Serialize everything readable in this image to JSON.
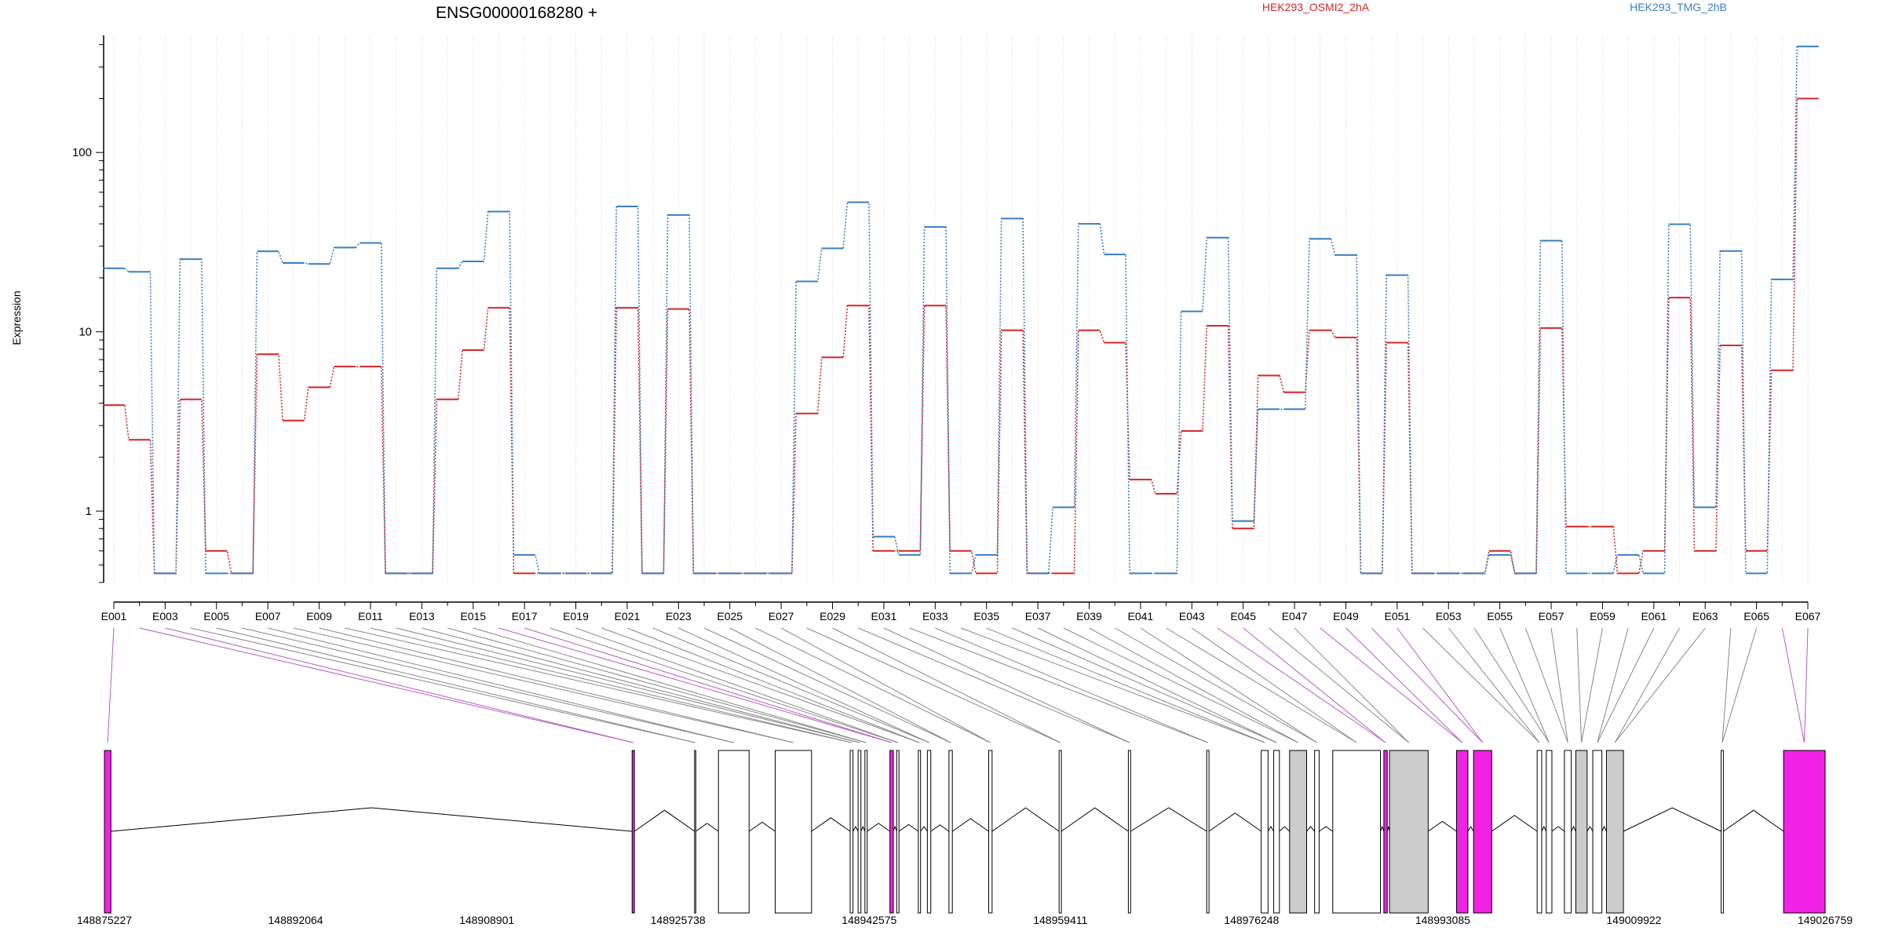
{
  "gene_title": "ENSG00000168280 +",
  "colors": {
    "series_a": "#d62728",
    "series_b": "#3a7fc4",
    "highlight": "#f022e6",
    "shaded": "#cccccc",
    "connector": "#888888"
  },
  "chart_data": {
    "type": "line",
    "title": "ENSG00000168280 +",
    "ylabel": "Expression",
    "xlabel": "",
    "yscale": "log",
    "ylim": [
      0.4,
      450
    ],
    "grid": "vertical",
    "legend": "top",
    "y_ticks": [
      "1",
      "10",
      "100"
    ],
    "y_tick_values": [
      1,
      10,
      100
    ],
    "categories": [
      "E001",
      "E002",
      "E003",
      "E004",
      "E005",
      "E006",
      "E007",
      "E008",
      "E009",
      "E010",
      "E011",
      "E012",
      "E013",
      "E014",
      "E015",
      "E016",
      "E017",
      "E018",
      "E019",
      "E020",
      "E021",
      "E022",
      "E023",
      "E024",
      "E025",
      "E026",
      "E027",
      "E028",
      "E029",
      "E030",
      "E031",
      "E032",
      "E033",
      "E034",
      "E035",
      "E036",
      "E037",
      "E038",
      "E039",
      "E040",
      "E041",
      "E042",
      "E043",
      "E044",
      "E045",
      "E046",
      "E047",
      "E048",
      "E049",
      "E050",
      "E051",
      "E052",
      "E053",
      "E054",
      "E055",
      "E056",
      "E057",
      "E058",
      "E059",
      "E060",
      "E061",
      "E062",
      "E063",
      "E064",
      "E065",
      "E066",
      "E067"
    ],
    "x_tick_labels": [
      "E001",
      "E003",
      "E005",
      "E007",
      "E009",
      "E011",
      "E013",
      "E015",
      "E017",
      "E019",
      "E021",
      "E023",
      "E025",
      "E027",
      "E029",
      "E031",
      "E033",
      "E035",
      "E037",
      "E039",
      "E041",
      "E043",
      "E045",
      "E047",
      "E049",
      "E051",
      "E053",
      "E055",
      "E057",
      "E059",
      "E061",
      "E063",
      "E065",
      "E067"
    ],
    "series": [
      {
        "name": "HEK293_OSMI2_2hA",
        "color": "#d62728",
        "values": [
          3.9,
          2.5,
          0.45,
          4.2,
          0.6,
          0.45,
          7.5,
          3.2,
          4.9,
          6.4,
          6.4,
          0.45,
          0.45,
          4.2,
          7.9,
          13.6,
          0.45,
          0.45,
          0.45,
          0.45,
          13.6,
          0.45,
          13.4,
          0.45,
          0.45,
          0.45,
          0.45,
          3.5,
          7.2,
          14,
          0.6,
          0.6,
          14,
          0.6,
          0.45,
          10.2,
          0.45,
          0.45,
          10.2,
          8.7,
          1.5,
          1.25,
          2.8,
          10.8,
          0.8,
          5.7,
          4.6,
          10.2,
          9.3,
          0.45,
          8.7,
          0.45,
          0.45,
          0.45,
          0.6,
          0.45,
          10.5,
          0.82,
          0.82,
          0.45,
          0.6,
          15.5,
          0.6,
          8.4,
          0.6,
          6.1,
          200
        ]
      },
      {
        "name": "HEK293_TMG_2hB",
        "color": "#3a7fc4",
        "values": [
          22.6,
          21.6,
          0.45,
          25.4,
          0.45,
          0.45,
          28.1,
          24.2,
          23.9,
          29.5,
          31.3,
          0.45,
          0.45,
          22.6,
          24.7,
          46.8,
          0.57,
          0.45,
          0.45,
          0.45,
          50,
          0.45,
          44.8,
          0.45,
          0.45,
          0.45,
          0.45,
          19.1,
          29.2,
          52.8,
          0.72,
          0.57,
          38.4,
          0.45,
          0.57,
          42.8,
          0.45,
          1.05,
          40,
          27,
          0.45,
          0.45,
          13,
          33.5,
          0.88,
          3.7,
          3.7,
          33,
          26.8,
          0.45,
          20.7,
          0.45,
          0.45,
          0.45,
          0.57,
          0.45,
          32.2,
          0.45,
          0.45,
          0.57,
          0.45,
          39.8,
          1.05,
          28.2,
          0.45,
          19.6,
          390
        ]
      }
    ],
    "gene_model": {
      "coordinate_labels": [
        "148875227",
        "148892064",
        "148908901",
        "148925738",
        "148942575",
        "148959411",
        "148976248",
        "148993085",
        "149009922",
        "149026759"
      ],
      "coordinate_values": [
        148875227,
        148892064,
        148908901,
        148925738,
        148942575,
        148959411,
        148976248,
        148993085,
        149009922,
        149026759
      ],
      "exons": [
        {
          "start": 148875227,
          "end": 148875800,
          "fill": "highlight"
        },
        {
          "start": 148921700,
          "end": 148921900,
          "fill": "highlight"
        },
        {
          "start": 148927200,
          "end": 148927300,
          "fill": "none"
        },
        {
          "start": 148929300,
          "end": 148932000,
          "fill": "none"
        },
        {
          "start": 148934300,
          "end": 148937500,
          "fill": "none"
        },
        {
          "start": 148940900,
          "end": 148941150,
          "fill": "none"
        },
        {
          "start": 148941600,
          "end": 148941850,
          "fill": "none"
        },
        {
          "start": 148942200,
          "end": 148942400,
          "fill": "none"
        },
        {
          "start": 148944400,
          "end": 148944700,
          "fill": "highlight"
        },
        {
          "start": 148945000,
          "end": 148945200,
          "fill": "none"
        },
        {
          "start": 148946900,
          "end": 148947100,
          "fill": "none"
        },
        {
          "start": 148947700,
          "end": 148948000,
          "fill": "none"
        },
        {
          "start": 148949600,
          "end": 148949900,
          "fill": "none"
        },
        {
          "start": 148953100,
          "end": 148953400,
          "fill": "none"
        },
        {
          "start": 148959300,
          "end": 148959500,
          "fill": "none"
        },
        {
          "start": 148965400,
          "end": 148965600,
          "fill": "none"
        },
        {
          "start": 148972300,
          "end": 148972500,
          "fill": "none"
        },
        {
          "start": 148977100,
          "end": 148977700,
          "fill": "none"
        },
        {
          "start": 148978200,
          "end": 148978700,
          "fill": "none"
        },
        {
          "start": 148979600,
          "end": 148981100,
          "fill": "shaded"
        },
        {
          "start": 148981800,
          "end": 148982200,
          "fill": "none"
        },
        {
          "start": 148983400,
          "end": 148987600,
          "fill": "none"
        },
        {
          "start": 148987900,
          "end": 148988200,
          "fill": "highlight"
        },
        {
          "start": 148988400,
          "end": 148991800,
          "fill": "shaded"
        },
        {
          "start": 148994300,
          "end": 148995300,
          "fill": "highlight"
        },
        {
          "start": 148995800,
          "end": 148997400,
          "fill": "highlight"
        },
        {
          "start": 149001400,
          "end": 149001800,
          "fill": "none"
        },
        {
          "start": 149002200,
          "end": 149002700,
          "fill": "none"
        },
        {
          "start": 149003800,
          "end": 149004400,
          "fill": "none"
        },
        {
          "start": 149004800,
          "end": 149005800,
          "fill": "shaded"
        },
        {
          "start": 149006300,
          "end": 149007100,
          "fill": "none"
        },
        {
          "start": 149007500,
          "end": 149009000,
          "fill": "shaded"
        },
        {
          "start": 149017600,
          "end": 149017800,
          "fill": "none"
        },
        {
          "start": 149023100,
          "end": 149026759,
          "fill": "highlight"
        }
      ]
    }
  }
}
